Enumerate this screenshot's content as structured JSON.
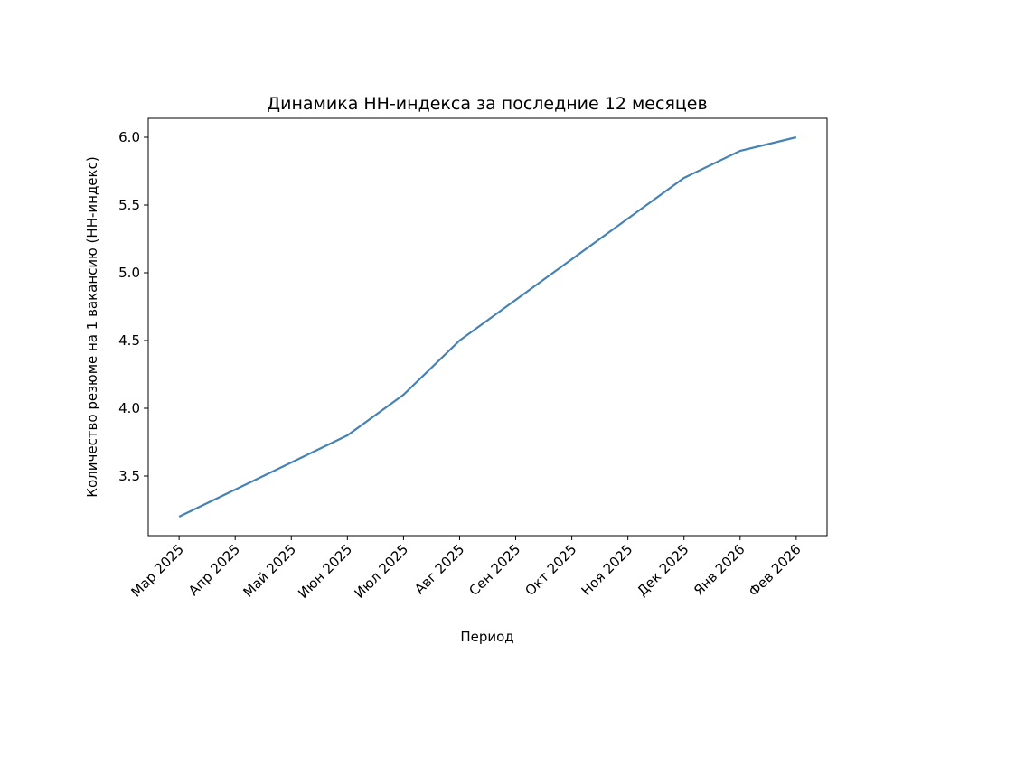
{
  "chart_data": {
    "type": "line",
    "title": "Динамика HH-индекса за последние 12 месяцев",
    "xlabel": "Период",
    "ylabel": "Количество резюме на 1 вакансию (HH-индекс)",
    "categories": [
      "Мар 2025",
      "Апр 2025",
      "Май 2025",
      "Июн 2025",
      "Июл 2025",
      "Авг 2025",
      "Сен 2025",
      "Окт 2025",
      "Ноя 2025",
      "Дек 2025",
      "Янв 2026",
      "Фев 2026"
    ],
    "series": [
      {
        "name": "HH-индекс",
        "color": "#4682b4",
        "values": [
          3.2,
          3.4,
          3.6,
          3.8,
          4.1,
          4.5,
          4.8,
          5.1,
          5.4,
          5.7,
          5.9,
          6.0
        ]
      }
    ],
    "ylim": [
      3.06,
      6.14
    ],
    "yticks": [
      3.5,
      {
        "value": 4,
        "label": "4.0"
      },
      4.5,
      {
        "value": 5,
        "label": "5.0"
      },
      5.5,
      {
        "value": 6,
        "label": "6.0"
      }
    ],
    "grid": false
  }
}
